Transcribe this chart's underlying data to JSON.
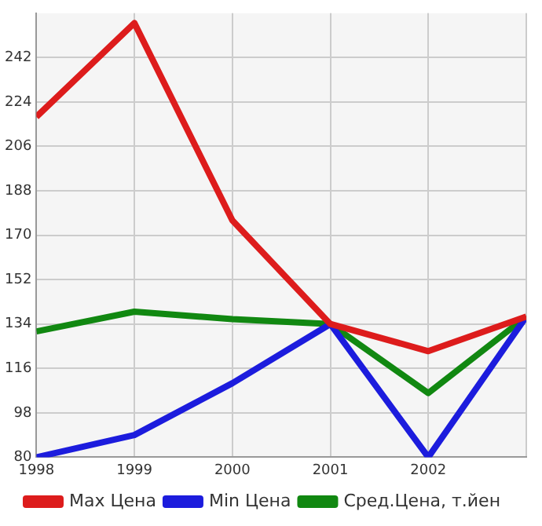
{
  "chart_data": {
    "type": "line",
    "x": [
      1998,
      1999,
      2000,
      2001,
      2002,
      2003
    ],
    "xlim": [
      1998,
      2003
    ],
    "xticks": [
      1998,
      1999,
      2000,
      2001,
      2002,
      {
        "value": 2003,
        "label": null
      }
    ],
    "ylim": [
      80,
      260
    ],
    "yticks": [
      80,
      98,
      116,
      134,
      152,
      170,
      188,
      206,
      224,
      242
    ],
    "grid": true,
    "legend": "bottom",
    "marker": "none",
    "line_style": "solid",
    "series": [
      {
        "name": "Max Цена",
        "color": "#dd1c1c",
        "values": [
          218,
          256,
          176,
          134,
          123,
          137
        ]
      },
      {
        "name": "Min Цена",
        "color": "#1c1cdd",
        "values": [
          80,
          89,
          110,
          134,
          80,
          137
        ]
      },
      {
        "name": "Сред.Цена, т.йен",
        "color": "#118811",
        "values": [
          131,
          139,
          136,
          134,
          106,
          137
        ]
      }
    ]
  }
}
